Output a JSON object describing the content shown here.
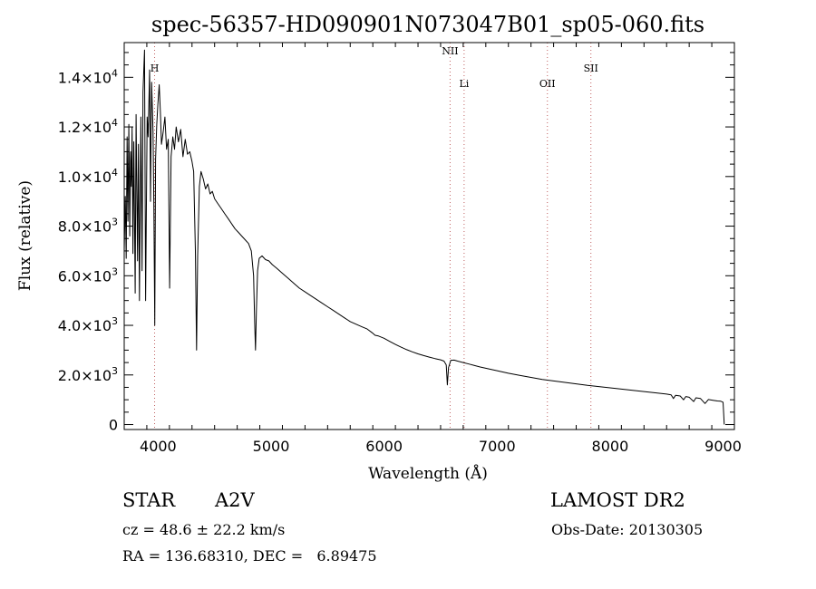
{
  "chart_data": {
    "type": "line",
    "title": "spec-56357-HD090901N073047B01_sp05-060.fits",
    "xlabel": "Wavelength (Å)",
    "ylabel": "Flux (relative)",
    "xlim": [
      3700,
      9100
    ],
    "ylim": [
      -200,
      15400
    ],
    "x_ticks": [
      4000,
      5000,
      6000,
      7000,
      8000,
      9000
    ],
    "y_ticks": [
      {
        "value": 0,
        "label": "0"
      },
      {
        "value": 2000,
        "label": "2.0×10",
        "exp": "3"
      },
      {
        "value": 4000,
        "label": "4.0×10",
        "exp": "3"
      },
      {
        "value": 6000,
        "label": "6.0×10",
        "exp": "3"
      },
      {
        "value": 8000,
        "label": "8.0×10",
        "exp": "3"
      },
      {
        "value": 10000,
        "label": "1.0×10",
        "exp": "4"
      },
      {
        "value": 12000,
        "label": "1.2×10",
        "exp": "4"
      },
      {
        "value": 14000,
        "label": "1.4×10",
        "exp": "4"
      }
    ],
    "line_markers": [
      {
        "label": "H",
        "x": 3969,
        "color": "#c06060",
        "label_level": 1
      },
      {
        "label": "NII",
        "x": 6584,
        "color": "#c06060",
        "label_level": 0
      },
      {
        "label": "Li",
        "x": 6708,
        "color": "#c06060",
        "label_level": 2
      },
      {
        "label": "OII",
        "x": 7445,
        "color": "#c06060",
        "label_level": 2
      },
      {
        "label": "SII",
        "x": 7830,
        "color": "#c06060",
        "label_level": 1
      }
    ],
    "series": [
      {
        "color": "#000000",
        "points": [
          [
            3700,
            7000
          ],
          [
            3710,
            9200
          ],
          [
            3718,
            6700
          ],
          [
            3726,
            11600
          ],
          [
            3733,
            8200
          ],
          [
            3741,
            12100
          ],
          [
            3749,
            7600
          ],
          [
            3756,
            11000
          ],
          [
            3763,
            9600
          ],
          [
            3770,
            12000
          ],
          [
            3777,
            6900
          ],
          [
            3785,
            11400
          ],
          [
            3797,
            5300
          ],
          [
            3805,
            12500
          ],
          [
            3818,
            6600
          ],
          [
            3826,
            11300
          ],
          [
            3835,
            5000
          ],
          [
            3848,
            12400
          ],
          [
            3858,
            6200
          ],
          [
            3866,
            13400
          ],
          [
            3880,
            15100
          ],
          [
            3889,
            5000
          ],
          [
            3903,
            12400
          ],
          [
            3912,
            11600
          ],
          [
            3925,
            14300
          ],
          [
            3933,
            9000
          ],
          [
            3942,
            13800
          ],
          [
            3955,
            11800
          ],
          [
            3962,
            8800
          ],
          [
            3970,
            4000
          ],
          [
            3978,
            10700
          ],
          [
            3988,
            12100
          ],
          [
            3998,
            12900
          ],
          [
            4010,
            13700
          ],
          [
            4020,
            12600
          ],
          [
            4030,
            11300
          ],
          [
            4045,
            11800
          ],
          [
            4060,
            12400
          ],
          [
            4075,
            11100
          ],
          [
            4090,
            11500
          ],
          [
            4102,
            5500
          ],
          [
            4115,
            10800
          ],
          [
            4130,
            11600
          ],
          [
            4145,
            11100
          ],
          [
            4160,
            12000
          ],
          [
            4180,
            11400
          ],
          [
            4200,
            11900
          ],
          [
            4220,
            10800
          ],
          [
            4240,
            11500
          ],
          [
            4260,
            10900
          ],
          [
            4280,
            11000
          ],
          [
            4300,
            10600
          ],
          [
            4315,
            10200
          ],
          [
            4330,
            7000
          ],
          [
            4340,
            3000
          ],
          [
            4350,
            6800
          ],
          [
            4365,
            9600
          ],
          [
            4380,
            10200
          ],
          [
            4400,
            9900
          ],
          [
            4420,
            9500
          ],
          [
            4440,
            9700
          ],
          [
            4460,
            9300
          ],
          [
            4480,
            9400
          ],
          [
            4500,
            9100
          ],
          [
            4530,
            8900
          ],
          [
            4560,
            8700
          ],
          [
            4590,
            8500
          ],
          [
            4620,
            8300
          ],
          [
            4650,
            8100
          ],
          [
            4680,
            7900
          ],
          [
            4710,
            7750
          ],
          [
            4740,
            7600
          ],
          [
            4770,
            7450
          ],
          [
            4800,
            7300
          ],
          [
            4825,
            7000
          ],
          [
            4845,
            6000
          ],
          [
            4855,
            4100
          ],
          [
            4862,
            3000
          ],
          [
            4870,
            4600
          ],
          [
            4880,
            6200
          ],
          [
            4895,
            6700
          ],
          [
            4920,
            6800
          ],
          [
            4950,
            6650
          ],
          [
            4980,
            6600
          ],
          [
            5010,
            6450
          ],
          [
            5050,
            6300
          ],
          [
            5100,
            6100
          ],
          [
            5150,
            5900
          ],
          [
            5200,
            5700
          ],
          [
            5250,
            5500
          ],
          [
            5300,
            5350
          ],
          [
            5350,
            5200
          ],
          [
            5400,
            5050
          ],
          [
            5450,
            4900
          ],
          [
            5500,
            4750
          ],
          [
            5550,
            4600
          ],
          [
            5600,
            4450
          ],
          [
            5650,
            4300
          ],
          [
            5700,
            4150
          ],
          [
            5750,
            4050
          ],
          [
            5800,
            3950
          ],
          [
            5850,
            3850
          ],
          [
            5895,
            3700
          ],
          [
            5920,
            3600
          ],
          [
            5950,
            3570
          ],
          [
            6000,
            3480
          ],
          [
            6050,
            3350
          ],
          [
            6100,
            3230
          ],
          [
            6150,
            3120
          ],
          [
            6200,
            3020
          ],
          [
            6250,
            2930
          ],
          [
            6300,
            2850
          ],
          [
            6350,
            2780
          ],
          [
            6400,
            2720
          ],
          [
            6450,
            2660
          ],
          [
            6500,
            2610
          ],
          [
            6530,
            2560
          ],
          [
            6550,
            2400
          ],
          [
            6560,
            1600
          ],
          [
            6570,
            2300
          ],
          [
            6590,
            2590
          ],
          [
            6620,
            2600
          ],
          [
            6650,
            2560
          ],
          [
            6700,
            2500
          ],
          [
            6750,
            2440
          ],
          [
            6800,
            2380
          ],
          [
            6850,
            2320
          ],
          [
            6900,
            2270
          ],
          [
            6950,
            2220
          ],
          [
            7000,
            2170
          ],
          [
            7100,
            2070
          ],
          [
            7200,
            1980
          ],
          [
            7300,
            1900
          ],
          [
            7400,
            1820
          ],
          [
            7500,
            1760
          ],
          [
            7600,
            1700
          ],
          [
            7700,
            1640
          ],
          [
            7800,
            1580
          ],
          [
            7900,
            1530
          ],
          [
            8000,
            1480
          ],
          [
            8100,
            1430
          ],
          [
            8200,
            1380
          ],
          [
            8300,
            1330
          ],
          [
            8400,
            1280
          ],
          [
            8500,
            1230
          ],
          [
            8540,
            1200
          ],
          [
            8560,
            1050
          ],
          [
            8580,
            1180
          ],
          [
            8620,
            1150
          ],
          [
            8650,
            1000
          ],
          [
            8670,
            1130
          ],
          [
            8700,
            1100
          ],
          [
            8740,
            930
          ],
          [
            8760,
            1080
          ],
          [
            8800,
            1050
          ],
          [
            8840,
            850
          ],
          [
            8870,
            1010
          ],
          [
            8910,
            980
          ],
          [
            8950,
            950
          ],
          [
            8980,
            940
          ],
          [
            9000,
            900
          ],
          [
            9010,
            0
          ]
        ]
      }
    ]
  },
  "footer": {
    "object_type": "STAR",
    "spectral_class": "A2V",
    "velocity": "cz = 48.6 ± 22.2 km/s",
    "coordinates": "RA = 136.68310, DEC =   6.89475",
    "survey": "LAMOST DR2",
    "obs_date": "Obs-Date: 20130305"
  }
}
